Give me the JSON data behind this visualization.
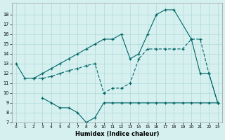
{
  "xlabel": "Humidex (Indice chaleur)",
  "bg_color": "#d6f0f0",
  "grid_color": "#b0d8d8",
  "line_color": "#006666",
  "xlim": [
    -0.5,
    23.5
  ],
  "ylim": [
    7,
    19.2
  ],
  "yticks": [
    7,
    8,
    9,
    10,
    11,
    12,
    13,
    14,
    15,
    16,
    17,
    18
  ],
  "xticks": [
    0,
    1,
    2,
    3,
    4,
    5,
    6,
    7,
    8,
    9,
    10,
    11,
    12,
    13,
    14,
    15,
    16,
    17,
    18,
    19,
    20,
    21,
    22,
    23
  ],
  "line1_x": [
    0,
    1,
    2,
    3,
    4,
    5,
    6,
    7,
    8,
    9,
    10,
    11,
    12,
    13,
    14,
    15,
    16,
    17,
    18,
    20,
    21,
    22,
    23
  ],
  "line1_y": [
    13,
    11.5,
    11.5,
    12.0,
    12.5,
    13.0,
    13.5,
    14.0,
    14.5,
    15.0,
    15.5,
    15.5,
    16.0,
    13.5,
    14.0,
    16.0,
    18.0,
    18.5,
    18.5,
    15.5,
    12.0,
    12.0,
    9.0
  ],
  "line2_x": [
    2,
    3,
    4,
    5,
    6,
    7,
    8,
    9,
    10,
    11,
    12,
    13,
    14,
    15,
    16,
    17,
    18,
    19,
    20,
    21,
    22,
    23
  ],
  "line2_y": [
    11.5,
    11.5,
    11.7,
    12.0,
    12.3,
    12.5,
    12.8,
    13.0,
    10.0,
    10.5,
    10.5,
    11.0,
    13.5,
    14.5,
    14.5,
    14.5,
    14.5,
    14.5,
    15.5,
    15.5,
    12.0,
    9.0
  ],
  "line3_x": [
    3,
    4,
    5,
    6,
    7,
    8,
    9,
    10,
    11,
    12,
    13,
    14,
    15,
    16,
    17,
    18,
    19,
    20,
    21,
    22,
    23
  ],
  "line3_y": [
    9.5,
    9.0,
    8.5,
    8.5,
    8.0,
    7.0,
    7.5,
    9.0,
    9.0,
    9.0,
    9.0,
    9.0,
    9.0,
    9.0,
    9.0,
    9.0,
    9.0,
    9.0,
    9.0,
    9.0,
    9.0
  ]
}
